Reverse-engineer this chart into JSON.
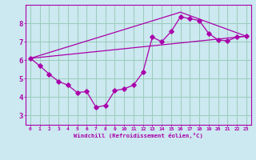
{
  "xlabel": "Windchill (Refroidissement éolien,°C)",
  "bg_color": "#cce8f0",
  "grid_color": "#99ccbb",
  "line_color": "#aa00aa",
  "xlim": [
    -0.5,
    23.5
  ],
  "ylim": [
    2.5,
    9.0
  ],
  "xticks": [
    0,
    1,
    2,
    3,
    4,
    5,
    6,
    7,
    8,
    9,
    10,
    11,
    12,
    13,
    14,
    15,
    16,
    17,
    18,
    19,
    20,
    21,
    22,
    23
  ],
  "yticks": [
    3,
    4,
    5,
    6,
    7,
    8
  ],
  "line1_x": [
    0,
    1,
    2,
    3,
    4,
    5,
    6,
    7,
    8,
    9,
    10,
    11,
    12,
    13,
    14,
    15,
    16,
    17,
    18,
    19,
    20,
    21,
    22,
    23
  ],
  "line1_y": [
    6.1,
    5.7,
    5.25,
    4.85,
    4.65,
    4.25,
    4.3,
    3.45,
    3.55,
    4.35,
    4.45,
    4.65,
    5.35,
    7.25,
    7.0,
    7.55,
    8.35,
    8.25,
    8.15,
    7.45,
    7.1,
    7.05,
    7.25,
    7.3
  ],
  "line2_x": [
    0,
    23
  ],
  "line2_y": [
    6.1,
    7.3
  ],
  "line3_x": [
    0,
    16,
    23
  ],
  "line3_y": [
    6.1,
    8.6,
    7.3
  ]
}
